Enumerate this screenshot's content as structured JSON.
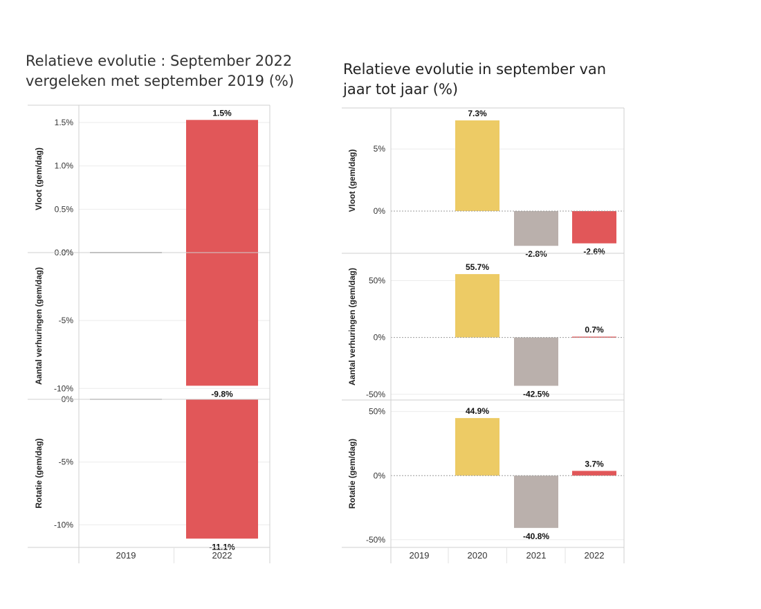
{
  "charts": {
    "left": {
      "title": "Relatieve evolutie : September 2022 vergeleken met september 2019 (%)"
    },
    "right": {
      "title": "Relatieve evolutie in september van jaar tot jaar (%)"
    }
  },
  "chart_data": [
    {
      "type": "bar",
      "title": "Relatieve evolutie : September 2022 vergeleken met september 2019 (%)",
      "categories": [
        "2019",
        "2022"
      ],
      "panels": [
        {
          "ylabel": "Vloot (gem/dag)",
          "ylim": [
            0,
            1.7
          ],
          "ticks": [
            0,
            0.5,
            1.0,
            1.5
          ],
          "tick_labels": [
            "0.0%",
            "0.5%",
            "1.0%",
            "1.5%"
          ],
          "values": [
            0,
            1.53
          ],
          "data_labels": [
            "",
            "1.5%"
          ],
          "colors": [
            "#9b9b9b",
            "#e15759"
          ]
        },
        {
          "ylabel": "Aantal verhuringen (gem/dag)",
          "ylim": [
            -10.8,
            0
          ],
          "ticks": [
            0,
            -5,
            -10
          ],
          "tick_labels": [
            "0%",
            "-5%",
            "-10%"
          ],
          "values": [
            0,
            -9.8
          ],
          "data_labels": [
            "",
            "-9.8%"
          ],
          "colors": [
            "#9b9b9b",
            "#e15759"
          ]
        },
        {
          "ylabel": "Rotatie (gem/dag)",
          "ylim": [
            -11.8,
            0
          ],
          "ticks": [
            0,
            -5,
            -10
          ],
          "tick_labels": [
            "0%",
            "-5%",
            "-10%"
          ],
          "values": [
            0,
            -11.1
          ],
          "data_labels": [
            "",
            "-11.1%"
          ],
          "colors": [
            "#9b9b9b",
            "#e15759"
          ]
        }
      ],
      "grid": true,
      "legend": "none"
    },
    {
      "type": "bar",
      "title": "Relatieve evolutie in september van jaar tot jaar (%)",
      "categories": [
        "2019",
        "2020",
        "2021",
        "2022"
      ],
      "panels": [
        {
          "ylabel": "Vloot (gem/dag)",
          "ylim": [
            -3.4,
            8.3
          ],
          "ticks": [
            0,
            5
          ],
          "tick_labels": [
            "0%",
            "5%"
          ],
          "values": [
            null,
            7.3,
            -2.8,
            -2.6
          ],
          "data_labels": [
            "",
            "7.3%",
            "-2.8%",
            "-2.6%"
          ],
          "colors": [
            "#edcb65",
            "#edcb65",
            "#bab0ac",
            "#e15759"
          ]
        },
        {
          "ylabel": "Aantal verhuringen (gem/dag)",
          "ylim": [
            -55,
            74
          ],
          "ticks": [
            50,
            0,
            -50
          ],
          "tick_labels": [
            "50%",
            "0%",
            "-50%"
          ],
          "values": [
            null,
            55.7,
            -42.5,
            0.7
          ],
          "data_labels": [
            "",
            "55.7%",
            "-42.5%",
            "0.7%"
          ],
          "colors": [
            "#edcb65",
            "#edcb65",
            "#bab0ac",
            "#e15759"
          ]
        },
        {
          "ylabel": "Rotatie (gem/dag)",
          "ylim": [
            -56,
            59
          ],
          "ticks": [
            50,
            0,
            -50
          ],
          "tick_labels": [
            "50%",
            "0%",
            "-50%"
          ],
          "values": [
            null,
            44.9,
            -40.8,
            3.7
          ],
          "data_labels": [
            "",
            "44.9%",
            "-40.8%",
            "3.7%"
          ],
          "colors": [
            "#edcb65",
            "#edcb65",
            "#bab0ac",
            "#e15759"
          ]
        }
      ],
      "grid": true,
      "zero_line": "dotted",
      "legend": "none"
    }
  ]
}
